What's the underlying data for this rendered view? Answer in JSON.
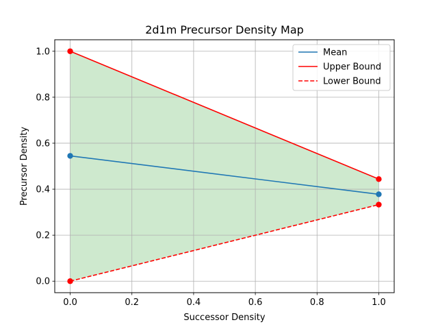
{
  "chart_data": {
    "type": "line",
    "title": "2d1m Precursor Density Map",
    "xlabel": "Successor Density",
    "ylabel": "Precursor Density",
    "xlim": [
      -0.05,
      1.05
    ],
    "ylim": [
      -0.05,
      1.05
    ],
    "x_ticks": [
      "0.0",
      "0.2",
      "0.4",
      "0.6",
      "0.8",
      "1.0"
    ],
    "y_ticks": [
      "0.0",
      "0.2",
      "0.4",
      "0.6",
      "0.8",
      "1.0"
    ],
    "grid": true,
    "legend_position": "top-right",
    "x": [
      0.0,
      1.0
    ],
    "series": [
      {
        "name": "Mean",
        "values": [
          0.545,
          0.378
        ],
        "color": "#1f77b4",
        "style": "solid",
        "markers": true
      },
      {
        "name": "Upper Bound",
        "values": [
          1.0,
          0.444
        ],
        "color": "#ff0000",
        "style": "solid",
        "markers": true
      },
      {
        "name": "Lower Bound",
        "values": [
          0.0,
          0.333
        ],
        "color": "#ff0000",
        "style": "dashed",
        "markers": true
      }
    ],
    "fill_between": {
      "upper": "Upper Bound",
      "lower": "Lower Bound",
      "color": "#2ca02c",
      "opacity": 0.23
    }
  }
}
